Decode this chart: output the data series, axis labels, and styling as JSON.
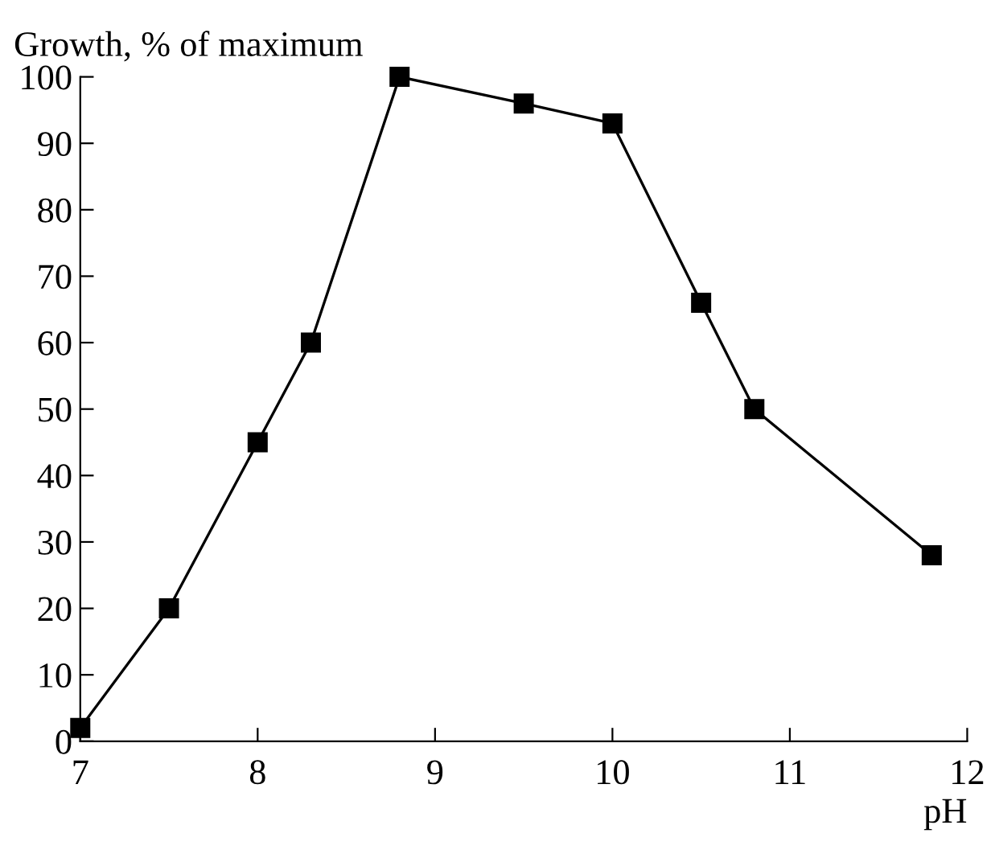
{
  "chart_data": {
    "type": "line",
    "xlabel": "pH",
    "ylabel": "Growth, % of maximum",
    "x": [
      7,
      7.5,
      8,
      8.3,
      8.8,
      9.5,
      10,
      10.5,
      10.8,
      11.8
    ],
    "series": [
      {
        "color": "#000000",
        "values": [
          2,
          20,
          45,
          60,
          100,
          96,
          93,
          66,
          50,
          28
        ]
      }
    ],
    "xlim": [
      7,
      12
    ],
    "xticks": [
      7,
      8,
      9,
      10,
      11,
      12
    ],
    "ylim": [
      0,
      100
    ],
    "yticks": [
      0,
      10,
      20,
      30,
      40,
      50,
      60,
      70,
      80,
      90,
      100
    ],
    "marker": "square",
    "line_style": "solid",
    "grid": false,
    "legend": false
  }
}
